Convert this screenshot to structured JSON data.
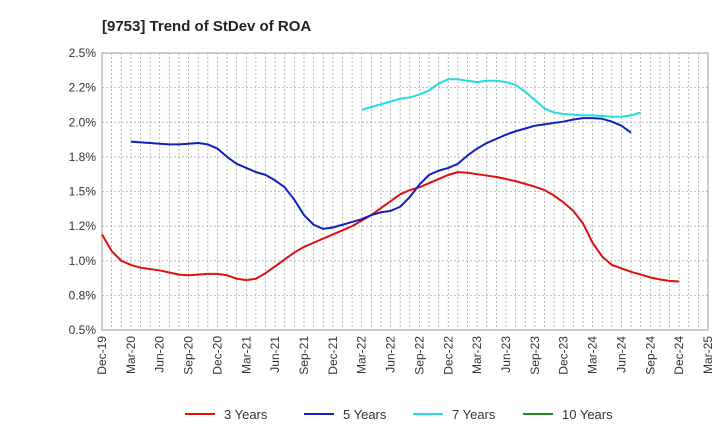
{
  "chart_data": {
    "type": "line",
    "title": "[9753]  Trend of StDev of ROA",
    "xlabel": "",
    "ylabel": "",
    "y_tick_labels": [
      "0.5%",
      "0.8%",
      "1.0%",
      "1.2%",
      "1.5%",
      "1.8%",
      "2.0%",
      "2.2%",
      "2.5%"
    ],
    "y_ticks": [
      0.5,
      0.75,
      1.0,
      1.25,
      1.5,
      1.75,
      2.0,
      2.25,
      2.5
    ],
    "ylim": [
      0.5,
      2.5
    ],
    "x_tick_labels": [
      "Dec-19",
      "Mar-20",
      "Jun-20",
      "Sep-20",
      "Dec-20",
      "Mar-21",
      "Jun-21",
      "Sep-21",
      "Dec-21",
      "Mar-22",
      "Jun-22",
      "Sep-22",
      "Dec-22",
      "Mar-23",
      "Jun-23",
      "Sep-23",
      "Dec-23",
      "Mar-24",
      "Jun-24",
      "Sep-24",
      "Dec-24",
      "Mar-25"
    ],
    "x_tick_index": [
      0,
      3,
      6,
      9,
      12,
      15,
      18,
      21,
      24,
      27,
      30,
      33,
      36,
      39,
      42,
      45,
      48,
      51,
      54,
      57,
      60,
      63
    ],
    "xlim_index": [
      0,
      63
    ],
    "grid": true,
    "legend_position": "bottom",
    "series": [
      {
        "name": "3 Years",
        "color": "#dd1111",
        "start_index": 0,
        "values": [
          1.19,
          1.07,
          1.0,
          0.97,
          0.95,
          0.94,
          0.93,
          0.915,
          0.9,
          0.895,
          0.9,
          0.905,
          0.905,
          0.895,
          0.87,
          0.86,
          0.87,
          0.91,
          0.96,
          1.01,
          1.06,
          1.1,
          1.13,
          1.16,
          1.19,
          1.22,
          1.25,
          1.29,
          1.33,
          1.38,
          1.43,
          1.48,
          1.51,
          1.53,
          1.56,
          1.59,
          1.62,
          1.64,
          1.635,
          1.625,
          1.615,
          1.605,
          1.59,
          1.575,
          1.555,
          1.535,
          1.51,
          1.47,
          1.42,
          1.36,
          1.27,
          1.13,
          1.03,
          0.97,
          0.945,
          0.92,
          0.9,
          0.88,
          0.865,
          0.855,
          0.85
        ]
      },
      {
        "name": "5 Years",
        "color": "#1122bb",
        "start_index": 3,
        "values": [
          1.86,
          1.855,
          1.85,
          1.845,
          1.84,
          1.84,
          1.845,
          1.85,
          1.84,
          1.81,
          1.75,
          1.7,
          1.67,
          1.64,
          1.62,
          1.58,
          1.53,
          1.44,
          1.33,
          1.26,
          1.23,
          1.24,
          1.26,
          1.28,
          1.3,
          1.33,
          1.35,
          1.36,
          1.39,
          1.46,
          1.55,
          1.62,
          1.65,
          1.67,
          1.7,
          1.76,
          1.81,
          1.85,
          1.88,
          1.91,
          1.935,
          1.955,
          1.975,
          1.985,
          1.995,
          2.005,
          2.02,
          2.03,
          2.03,
          2.025,
          2.005,
          1.975,
          1.925
        ]
      },
      {
        "name": "7 Years",
        "color": "#22dddd",
        "start_index": 27,
        "values": [
          2.09,
          2.11,
          2.13,
          2.15,
          2.17,
          2.18,
          2.2,
          2.23,
          2.28,
          2.31,
          2.31,
          2.3,
          2.29,
          2.3,
          2.3,
          2.29,
          2.27,
          2.22,
          2.16,
          2.1,
          2.07,
          2.06,
          2.055,
          2.05,
          2.05,
          2.045,
          2.04,
          2.04,
          2.05,
          2.07
        ]
      },
      {
        "name": "10 Years",
        "color": "#228822",
        "start_index": 0,
        "values": []
      }
    ]
  }
}
